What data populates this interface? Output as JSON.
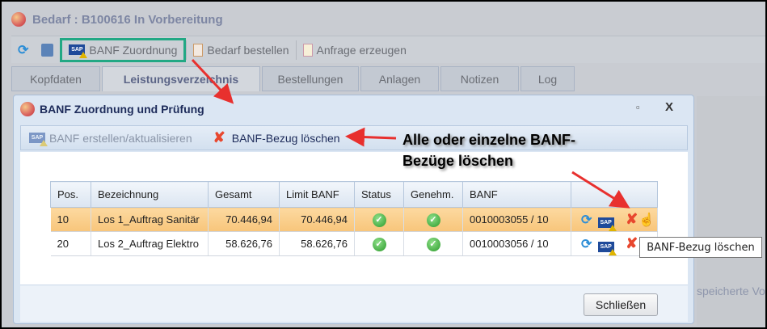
{
  "window": {
    "title": "Bedarf : B100616 In Vorbereitung"
  },
  "toolbar": {
    "banf_zuordnung": "BANF Zuordnung",
    "bedarf_bestellen": "Bedarf bestellen",
    "anfrage_erzeugen": "Anfrage erzeugen"
  },
  "tabs": [
    "Kopfdaten",
    "Leistungsverzeichnis",
    "Bestellungen",
    "Anlagen",
    "Notizen",
    "Log"
  ],
  "active_tab": "Leistungsverzeichnis",
  "dialog": {
    "title": "BANF Zuordnung und Prüfung",
    "create_update": "BANF erstellen/aktualisieren",
    "delete_ref": "BANF-Bezug löschen",
    "close": "Schließen"
  },
  "table": {
    "headers": [
      "Pos.",
      "Bezeichnung",
      "Gesamt",
      "Limit BANF",
      "Status",
      "Genehm.",
      "BANF",
      ""
    ],
    "rows": [
      {
        "pos": "10",
        "bezeichnung": "Los 1_Auftrag Sanitär",
        "gesamt": "70.446,94",
        "limit": "70.446,94",
        "status": "ok",
        "genehm": "ok",
        "banf": "0010003055 / 10",
        "selected": true
      },
      {
        "pos": "20",
        "bezeichnung": "Los 2_Auftrag Elektro",
        "gesamt": "58.626,76",
        "limit": "58.626,76",
        "status": "ok",
        "genehm": "ok",
        "banf": "0010003056 / 10",
        "selected": false
      }
    ]
  },
  "tooltip": "BANF-Bezug löschen",
  "annotation": {
    "line1": "Alle oder einzelne BANF-",
    "line2": "Bezüge löschen"
  },
  "background_text": "speicherte Vo",
  "colors": {
    "highlight_box": "#22a884",
    "selected_row": "#f8c57a",
    "arrow": "#e8302e"
  }
}
